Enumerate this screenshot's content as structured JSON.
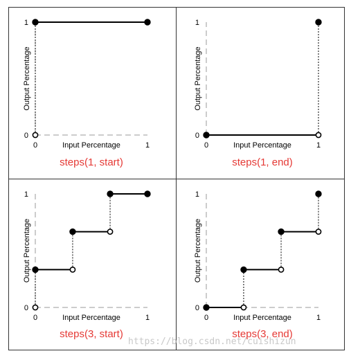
{
  "chart_data": [
    {
      "type": "line",
      "title": "steps(1, start)",
      "xlabel": "Input Percentage",
      "ylabel": "Output Percentage",
      "x_ticks": [
        "0",
        "1"
      ],
      "y_ticks": [
        "0",
        "1"
      ],
      "xlim": [
        0,
        1
      ],
      "ylim": [
        0,
        1
      ],
      "grid": false,
      "segments": [
        {
          "x": [
            0,
            1
          ],
          "y": [
            1,
            1
          ]
        }
      ],
      "filled_points": [
        {
          "x": 0,
          "y": 1
        },
        {
          "x": 1,
          "y": 1
        }
      ],
      "open_points": [
        {
          "x": 0,
          "y": 0
        }
      ],
      "jumps": [
        {
          "x": 0,
          "y_from": 0,
          "y_to": 1
        }
      ]
    },
    {
      "type": "line",
      "title": "steps(1, end)",
      "xlabel": "Input Percentage",
      "ylabel": "Output Percentage",
      "x_ticks": [
        "0",
        "1"
      ],
      "y_ticks": [
        "0",
        "1"
      ],
      "xlim": [
        0,
        1
      ],
      "ylim": [
        0,
        1
      ],
      "grid": false,
      "segments": [
        {
          "x": [
            0,
            1
          ],
          "y": [
            0,
            0
          ]
        }
      ],
      "filled_points": [
        {
          "x": 0,
          "y": 0
        },
        {
          "x": 1,
          "y": 1
        }
      ],
      "open_points": [
        {
          "x": 1,
          "y": 0
        }
      ],
      "jumps": [
        {
          "x": 1,
          "y_from": 0,
          "y_to": 1
        }
      ]
    },
    {
      "type": "line",
      "title": "steps(3, start)",
      "xlabel": "Input Percentage",
      "ylabel": "Output Percentage",
      "x_ticks": [
        "0",
        "1"
      ],
      "y_ticks": [
        "0",
        "1"
      ],
      "xlim": [
        0,
        1
      ],
      "ylim": [
        0,
        1
      ],
      "grid": false,
      "segments": [
        {
          "x": [
            0,
            0.333
          ],
          "y": [
            0.333,
            0.333
          ]
        },
        {
          "x": [
            0.333,
            0.667
          ],
          "y": [
            0.667,
            0.667
          ]
        },
        {
          "x": [
            0.667,
            1
          ],
          "y": [
            1,
            1
          ]
        }
      ],
      "filled_points": [
        {
          "x": 0,
          "y": 0.333
        },
        {
          "x": 0.333,
          "y": 0.667
        },
        {
          "x": 0.667,
          "y": 1
        },
        {
          "x": 1,
          "y": 1
        }
      ],
      "open_points": [
        {
          "x": 0,
          "y": 0
        },
        {
          "x": 0.333,
          "y": 0.333
        },
        {
          "x": 0.667,
          "y": 0.667
        }
      ],
      "jumps": [
        {
          "x": 0,
          "y_from": 0,
          "y_to": 0.333
        },
        {
          "x": 0.333,
          "y_from": 0.333,
          "y_to": 0.667
        },
        {
          "x": 0.667,
          "y_from": 0.667,
          "y_to": 1
        }
      ]
    },
    {
      "type": "line",
      "title": "steps(3, end)",
      "xlabel": "Input Percentage",
      "ylabel": "Output Percentage",
      "x_ticks": [
        "0",
        "1"
      ],
      "y_ticks": [
        "0",
        "1"
      ],
      "xlim": [
        0,
        1
      ],
      "ylim": [
        0,
        1
      ],
      "grid": false,
      "segments": [
        {
          "x": [
            0,
            0.333
          ],
          "y": [
            0,
            0
          ]
        },
        {
          "x": [
            0.333,
            0.667
          ],
          "y": [
            0.333,
            0.333
          ]
        },
        {
          "x": [
            0.667,
            1
          ],
          "y": [
            0.667,
            0.667
          ]
        }
      ],
      "filled_points": [
        {
          "x": 0,
          "y": 0
        },
        {
          "x": 0.333,
          "y": 0.333
        },
        {
          "x": 0.667,
          "y": 0.667
        },
        {
          "x": 1,
          "y": 1
        }
      ],
      "open_points": [
        {
          "x": 0.333,
          "y": 0
        },
        {
          "x": 0.667,
          "y": 0.333
        },
        {
          "x": 1,
          "y": 0.667
        }
      ],
      "jumps": [
        {
          "x": 0.333,
          "y_from": 0,
          "y_to": 0.333
        },
        {
          "x": 0.667,
          "y_from": 0.333,
          "y_to": 0.667
        },
        {
          "x": 1,
          "y_from": 0.667,
          "y_to": 1
        }
      ]
    }
  ],
  "watermark": "https://blog.csdn.net/cuishizun",
  "colors": {
    "title": "#e53935",
    "line": "#000000",
    "axis": "#999999",
    "frame": "#333333",
    "watermark": "#c8c8c8"
  }
}
